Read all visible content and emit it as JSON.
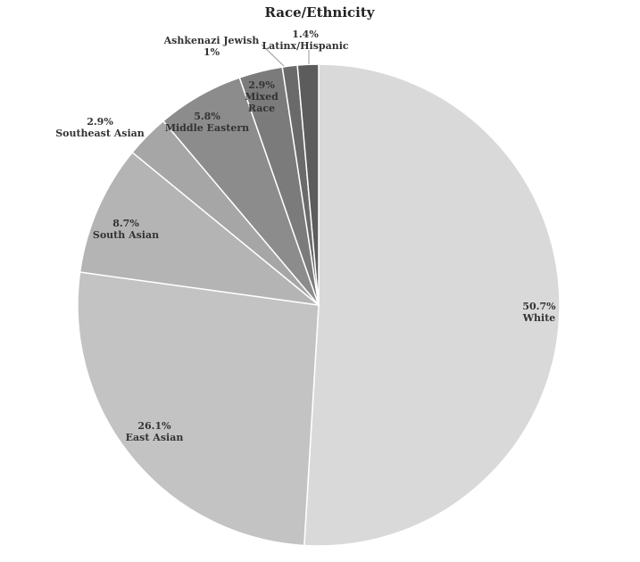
{
  "chart_data": {
    "type": "pie",
    "title": "Race/Ethnicity",
    "slices": [
      {
        "label": "White",
        "value": 50.7,
        "value_text": "50.7%",
        "color": "#d9d9d9"
      },
      {
        "label": "East Asian",
        "value": 26.1,
        "value_text": "26.1%",
        "color": "#c3c3c3"
      },
      {
        "label": "South Asian",
        "value": 8.7,
        "value_text": "8.7%",
        "color": "#b4b4b4"
      },
      {
        "label": "Southeast Asian",
        "value": 2.9,
        "value_text": "2.9%",
        "color": "#a6a6a6"
      },
      {
        "label": "Middle Eastern",
        "value": 5.8,
        "value_text": "5.8%",
        "color": "#8c8c8c"
      },
      {
        "label": "Mixed Race",
        "value": 2.9,
        "value_text": "2.9%",
        "color": "#7b7b7b"
      },
      {
        "label": "Ashkenazi Jewish",
        "value": 1.0,
        "value_text": "1%",
        "color": "#6a6a6a"
      },
      {
        "label": "Latinx/Hispanic",
        "value": 1.4,
        "value_text": "1.4%",
        "color": "#5c5c5c"
      }
    ],
    "start": "12 o'clock",
    "direction": "clockwise",
    "legend": "none",
    "labels": "data labels with category name and percentage"
  }
}
